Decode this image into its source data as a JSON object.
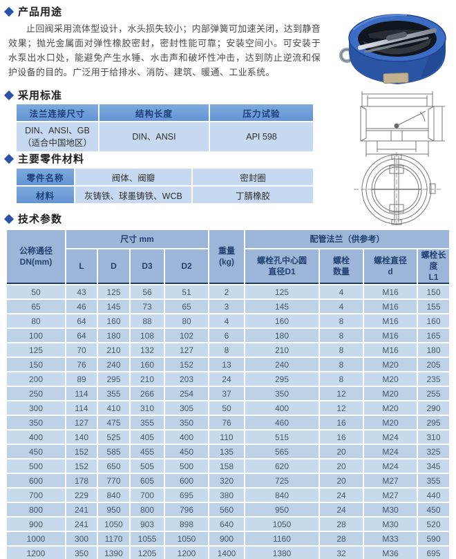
{
  "icons": {
    "section_bullet": "diamond-icon"
  },
  "colors": {
    "accent_navy": "#2a52a8",
    "small_table_header_bg": "#6d9ed9",
    "small_table_cell_bg": "#c6d9f0",
    "tech_header_bg": "#9cb6da",
    "tech_header_text": "#22416f",
    "tech_row_light": "#c7d9ec",
    "tech_row_dark": "#bdd1e7",
    "valve_body_blue": "#2d5bb0"
  },
  "sections": {
    "usage": {
      "title": "产品用途",
      "paragraph": "止回阀采用流体型设计，水头损失较小；内部弹簧可加速关闭，达到静音效果；抛光金属面对弹性橡胶密封，密封性能可靠；安装空间小。可安装于水泵出水口处，能避免产生水锤、水击声和破坏性冲击，达到防止逆流和保护设备的目的。广泛用于给排水、消防、建筑、暖通、工业系统。"
    },
    "standards": {
      "title": "采用标准",
      "table": {
        "headers": [
          "法兰连接尺寸",
          "结构长度",
          "压力试验"
        ],
        "row": [
          "DIN、ANSI、GB\n（适合中国地区）",
          "DIN、ANSI",
          "API 598"
        ]
      }
    },
    "materials": {
      "title": "主要零件材料",
      "table": {
        "rows": [
          {
            "label": "零件名称",
            "cells": [
              "阀体、阀瓣",
              "密封圈"
            ]
          },
          {
            "label": "材料",
            "cells": [
              "灰铸铁、球墨铸铁、WCB",
              "丁腈橡胶"
            ]
          }
        ]
      }
    },
    "tech": {
      "title": "技术参数",
      "table": {
        "header": {
          "dn": "公称通径\nDN(mm)",
          "size_group": "尺寸 mm",
          "size_cols": [
            "L",
            "D",
            "D3",
            "D2"
          ],
          "weight": "重量\n(kg)",
          "flange_group": "配管法兰（供参考）",
          "flange_cols": [
            "螺栓孔中心圆\n直径D1",
            "螺栓\n数量",
            "螺栓直径\nd",
            "螺栓长度\nL1"
          ]
        },
        "rows": [
          [
            50,
            43,
            125,
            56,
            51,
            2,
            125,
            4,
            "M16",
            150
          ],
          [
            65,
            46,
            145,
            73,
            65,
            3,
            145,
            4,
            "M16",
            155
          ],
          [
            80,
            64,
            160,
            88,
            80,
            4,
            160,
            8,
            "M16",
            160
          ],
          [
            100,
            64,
            180,
            108,
            102,
            6,
            180,
            8,
            "M16",
            165
          ],
          [
            125,
            70,
            210,
            132,
            127,
            8,
            210,
            8,
            "M16",
            180
          ],
          [
            150,
            76,
            240,
            160,
            152,
            13,
            240,
            8,
            "M20",
            205
          ],
          [
            200,
            89,
            295,
            210,
            203,
            24,
            295,
            8,
            "M20",
            235
          ],
          [
            250,
            114,
            355,
            266,
            254,
            37,
            350,
            12,
            "M20",
            255
          ],
          [
            300,
            114,
            410,
            310,
            305,
            50,
            400,
            12,
            "M20",
            290
          ],
          [
            350,
            127,
            475,
            355,
            350,
            76,
            460,
            16,
            "M20",
            295
          ],
          [
            400,
            140,
            525,
            405,
            400,
            110,
            515,
            16,
            "M24",
            310
          ],
          [
            450,
            152,
            585,
            455,
            450,
            135,
            565,
            20,
            "M24",
            325
          ],
          [
            500,
            152,
            650,
            505,
            500,
            158,
            620,
            20,
            "M24",
            345
          ],
          [
            600,
            178,
            770,
            605,
            600,
            320,
            725,
            20,
            "M27",
            355
          ],
          [
            700,
            229,
            840,
            700,
            695,
            380,
            840,
            24,
            "M27",
            440
          ],
          [
            800,
            241,
            950,
            800,
            796,
            560,
            950,
            24,
            "M30",
            450
          ],
          [
            900,
            241,
            1050,
            903,
            898,
            640,
            1050,
            28,
            "M30",
            520
          ],
          [
            1000,
            300,
            1170,
            1055,
            1050,
            900,
            1160,
            28,
            "M33",
            590
          ],
          [
            1200,
            350,
            1390,
            1205,
            1200,
            1400,
            1380,
            32,
            "M36",
            695
          ]
        ]
      }
    }
  },
  "images": {
    "product_photo": "blue dual-plate wafer check valve photo",
    "technical_drawing": "valve cross-section and front view line drawing"
  }
}
